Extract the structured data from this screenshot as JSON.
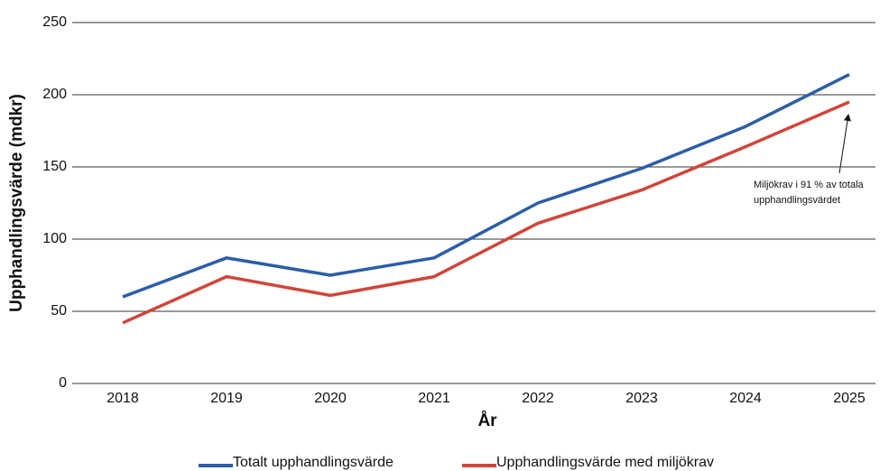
{
  "chart_data": {
    "type": "line",
    "x_label": "År",
    "y_label": "Upphandlingsvärde (mdkr)",
    "categories": [
      "2018",
      "2019",
      "2020",
      "2021",
      "2022",
      "2023",
      "2024",
      "2025"
    ],
    "series": [
      {
        "name": "Totalt upphandlingsvärde",
        "color": "#2b5ea7",
        "values": [
          60,
          87,
          75,
          87,
          125,
          149,
          178,
          214
        ]
      },
      {
        "name": "Upphandlingsvärde med miljökrav",
        "color": "#d0453a",
        "values": [
          42,
          74,
          61,
          74,
          111,
          134,
          164,
          195
        ]
      }
    ],
    "annotation": [
      "Miljökrav i 91 % av totala",
      "upphandlingsvärdet"
    ],
    "ylim": [
      0,
      250
    ],
    "yticks": [
      0,
      50,
      100,
      150,
      200,
      250
    ],
    "grid": true
  }
}
